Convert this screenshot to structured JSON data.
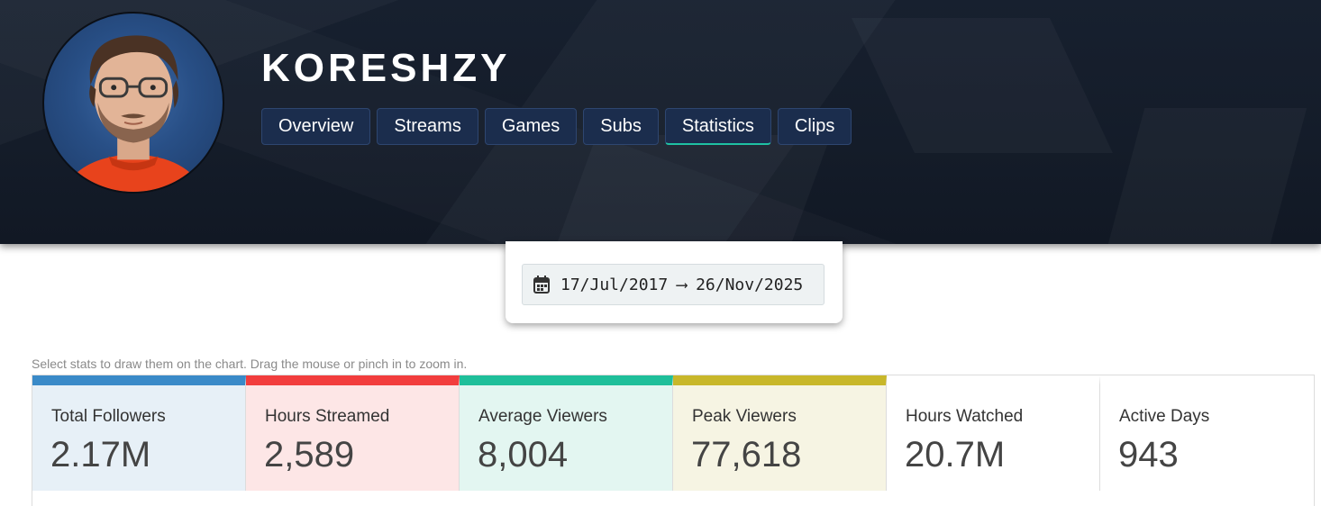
{
  "channel": {
    "name": "KORESHZY"
  },
  "tabs": [
    {
      "label": "Overview"
    },
    {
      "label": "Streams"
    },
    {
      "label": "Games"
    },
    {
      "label": "Subs"
    },
    {
      "label": "Statistics",
      "active": true
    },
    {
      "label": "Clips"
    }
  ],
  "date_range": {
    "icon": "calendar-icon",
    "start": "17/Jul/2017",
    "arrow": "⟶",
    "end": "26/Nov/2025"
  },
  "hint": "Select stats to draw them on the chart. Drag the mouse or pinch in to zoom in.",
  "stats": [
    {
      "label": "Total Followers",
      "value": "2.17M",
      "accent": "#3a8ac8",
      "bg": "#e7f0f7"
    },
    {
      "label": "Hours Streamed",
      "value": "2,589",
      "accent": "#f23d3d",
      "bg": "#fde6e6"
    },
    {
      "label": "Average Viewers",
      "value": "8,004",
      "accent": "#1fbf9a",
      "bg": "#e3f6f1"
    },
    {
      "label": "Peak Viewers",
      "value": "77,618",
      "accent": "#c8b72a",
      "bg": "#f6f4e3"
    },
    {
      "label": "Hours Watched",
      "value": "20.7M",
      "accent": "",
      "bg": "#ffffff"
    },
    {
      "label": "Active Days",
      "value": "943",
      "accent": "",
      "bg": "#ffffff"
    }
  ]
}
